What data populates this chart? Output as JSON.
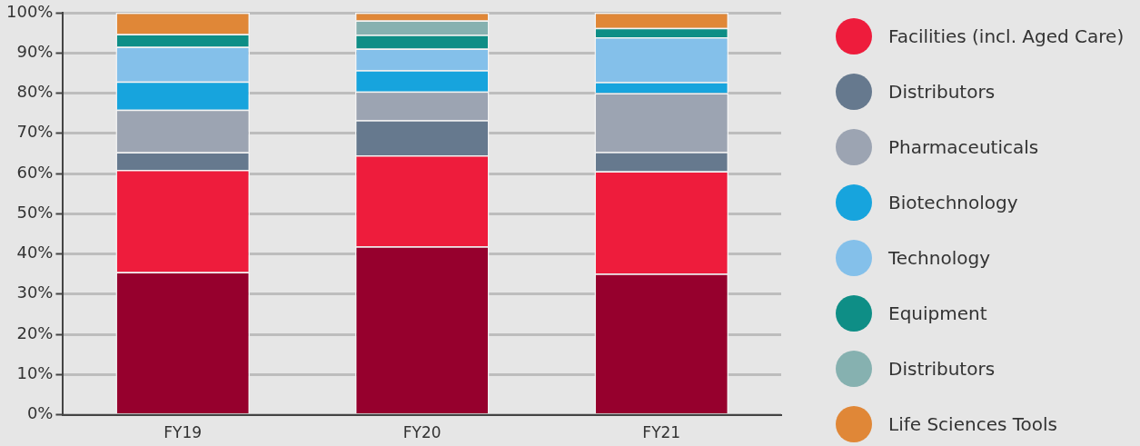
{
  "chart_data": {
    "type": "bar",
    "stacked": true,
    "categories": [
      "FY19",
      "FY20",
      "FY21"
    ],
    "series": [
      {
        "color": "#96002d",
        "values": [
          35.5,
          41.9,
          35.1
        ]
      },
      {
        "name": "Facilities (incl. Aged Care)",
        "color": "#ee1c3c",
        "values": [
          25.4,
          22.6,
          25.5
        ]
      },
      {
        "name": "Distributors",
        "color": "#66798e",
        "values": [
          4.4,
          8.8,
          4.8
        ]
      },
      {
        "name": "Pharmaceuticals",
        "color": "#9ca4b2",
        "values": [
          10.6,
          7.1,
          14.6
        ]
      },
      {
        "name": "Biotechnology",
        "color": "#17a4dd",
        "values": [
          7.0,
          5.3,
          2.8
        ]
      },
      {
        "name": "Technology",
        "color": "#84c0ea",
        "values": [
          8.6,
          5.4,
          11.1
        ]
      },
      {
        "name": "Equipment",
        "color": "#0e8e86",
        "values": [
          3.2,
          3.4,
          2.3
        ]
      },
      {
        "name": "Distributors",
        "color": "#86b1b0",
        "values": [
          0,
          3.6,
          0
        ]
      },
      {
        "name": "Life Sciences Tools",
        "color": "#e08737",
        "values": [
          5.3,
          1.9,
          3.8
        ]
      }
    ],
    "ylim": [
      0,
      100
    ],
    "yticks": [
      {
        "value": 0,
        "label": "0%"
      },
      {
        "value": 10,
        "label": "10%"
      },
      {
        "value": 20,
        "label": "20%"
      },
      {
        "value": 30,
        "label": "30%"
      },
      {
        "value": 40,
        "label": "40%"
      },
      {
        "value": 50,
        "label": "50%"
      },
      {
        "value": 60,
        "label": "60%"
      },
      {
        "value": 70,
        "label": "70%"
      },
      {
        "value": 80,
        "label": "80%"
      },
      {
        "value": 90,
        "label": "90%"
      },
      {
        "value": 100,
        "label": "100%"
      }
    ],
    "grid": "y",
    "legend": "right"
  }
}
